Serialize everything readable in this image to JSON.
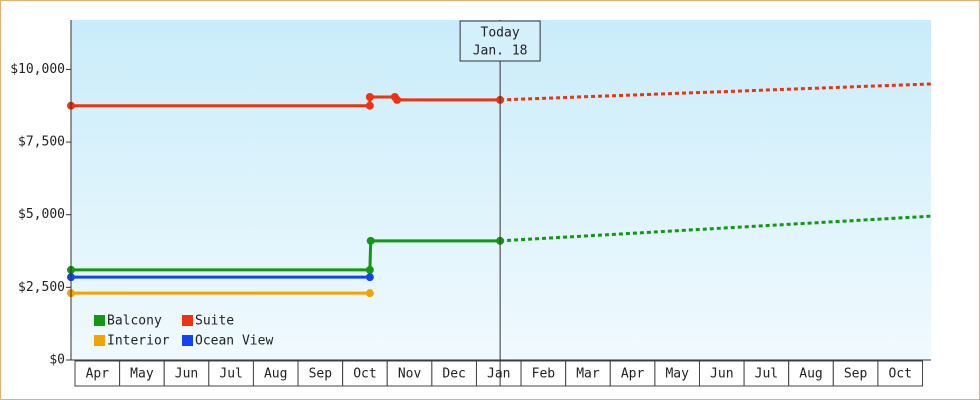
{
  "chart_data": {
    "type": "line",
    "categories": [
      "Apr",
      "May",
      "Jun",
      "Jul",
      "Aug",
      "Sep",
      "Oct",
      "Nov",
      "Dec",
      "Jan",
      "Feb",
      "Mar",
      "Apr",
      "May",
      "Jun",
      "Jul",
      "Aug",
      "Sep",
      "Oct"
    ],
    "xlim": [
      -0.09,
      19.19
    ],
    "ylim": [
      0,
      11700
    ],
    "yticks": [
      {
        "value": 0,
        "label": "$0"
      },
      {
        "value": 2500,
        "label": "$2,500"
      },
      {
        "value": 5000,
        "label": "$5,000"
      },
      {
        "value": 7500,
        "label": "$7,500"
      },
      {
        "value": 10000,
        "label": "$10,000"
      }
    ],
    "annotation": {
      "x": 9.53,
      "lines": [
        "Today",
        "Jan. 18"
      ]
    },
    "series": [
      {
        "name": "Balcony",
        "color": "#119911",
        "x": [
          -0.09,
          6.61,
          6.63,
          9.53
        ],
        "values": [
          3100,
          3100,
          4100,
          4100
        ],
        "forecast": {
          "x": [
            9.53,
            19.19
          ],
          "values": [
            4100,
            4950
          ]
        }
      },
      {
        "name": "Suite",
        "color": "#ee3311",
        "x": [
          -0.09,
          6.61,
          6.61,
          7.17,
          7.22,
          9.53
        ],
        "values": [
          8750,
          8750,
          9050,
          9050,
          8950,
          8950
        ],
        "forecast": {
          "x": [
            9.53,
            19.19
          ],
          "values": [
            8950,
            9500
          ]
        }
      },
      {
        "name": "Interior",
        "color": "#f5a300",
        "x": [
          -0.09,
          6.61
        ],
        "values": [
          2300,
          2300
        ]
      },
      {
        "name": "Ocean View",
        "color": "#1144ee",
        "x": [
          -0.09,
          6.61
        ],
        "values": [
          2850,
          2850
        ]
      }
    ]
  }
}
